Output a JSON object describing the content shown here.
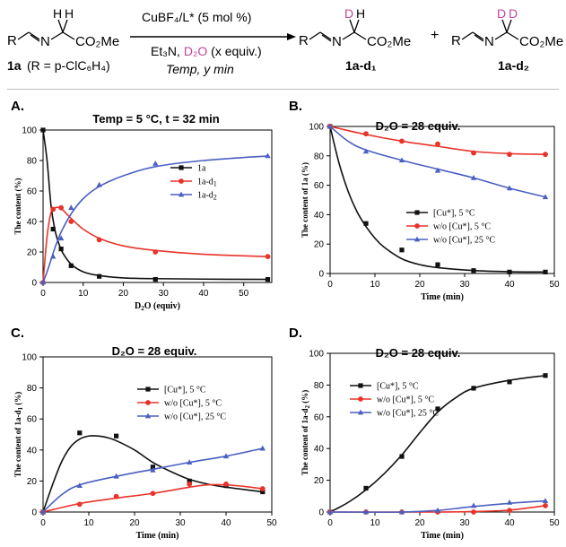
{
  "scheme": {
    "reactant_formula": "R",
    "reactant_N": "N",
    "reactant_H1": "H",
    "reactant_H2": "H",
    "reactant_ester": "CO₂Me",
    "reactant_label": "1a",
    "reactant_R_def": "(R = p-ClC₆H₄)",
    "reagent_top": "CuBF₄/L* (5 mol %)",
    "reagent_mid_a": "Et₃N, ",
    "reagent_mid_d2o": "D₂O",
    "reagent_mid_b": " (x equiv.)",
    "reagent_bottom": "Temp,  y min",
    "product1_label": "1a-d₁",
    "product2_label": "1a-d₂",
    "plus": "+",
    "D": "D"
  },
  "panels": {
    "A": {
      "letter": "A.",
      "title": "Temp = 5 °C, t = 32 min"
    },
    "B": {
      "letter": "B.",
      "title": "D₂O = 28 equiv."
    },
    "C": {
      "letter": "C.",
      "title": "D₂O = 28 equiv."
    },
    "D": {
      "letter": "D.",
      "title": "D₂O = 28 equiv."
    }
  },
  "colors": {
    "black": "#111111",
    "red": "#e8332a",
    "blue": "#4a5fc1",
    "magenta": "#c0459b"
  },
  "chart_data": [
    {
      "id": "A",
      "type": "line",
      "xlabel": "D₂O (equiv)",
      "ylabel": "The content (%)",
      "xlim": [
        0,
        57
      ],
      "ylim": [
        0,
        100
      ],
      "xticks": [
        0,
        10,
        20,
        30,
        40,
        50
      ],
      "yticks": [
        0,
        20,
        40,
        60,
        80,
        100
      ],
      "legend": "center-right",
      "series": [
        {
          "name": "1a",
          "color": "#111111",
          "marker": "square",
          "x": [
            0,
            2.5,
            4.5,
            7,
            14,
            28,
            56
          ],
          "y": [
            100,
            35,
            22,
            11,
            4,
            2,
            2
          ],
          "curve": [
            [
              0,
              100
            ],
            [
              1,
              80
            ],
            [
              2,
              50
            ],
            [
              3,
              34
            ],
            [
              4,
              25
            ],
            [
              5,
              19
            ],
            [
              7,
              12
            ],
            [
              10,
              7
            ],
            [
              14,
              4.5
            ],
            [
              20,
              3
            ],
            [
              28,
              2.5
            ],
            [
              40,
              2.2
            ],
            [
              56,
              2
            ]
          ]
        },
        {
          "name": "1a-d1",
          "color": "#e8332a",
          "marker": "circle",
          "x": [
            0,
            2.5,
            4.5,
            7,
            14,
            28,
            56
          ],
          "y": [
            0,
            48,
            49,
            40,
            28,
            20,
            17
          ],
          "curve": [
            [
              0,
              0
            ],
            [
              1,
              30
            ],
            [
              2,
              46
            ],
            [
              3,
              49
            ],
            [
              4.5,
              48.5
            ],
            [
              7,
              42
            ],
            [
              10,
              35
            ],
            [
              14,
              29
            ],
            [
              20,
              24
            ],
            [
              28,
              21
            ],
            [
              40,
              18.5
            ],
            [
              56,
              17
            ]
          ]
        },
        {
          "name": "1a-d2",
          "color": "#4a5fc1",
          "marker": "triangle",
          "x": [
            0,
            2.5,
            4.5,
            7,
            14,
            28,
            56
          ],
          "y": [
            0,
            17,
            29,
            49,
            64,
            78,
            83
          ],
          "curve": [
            [
              0,
              0
            ],
            [
              1,
              7
            ],
            [
              2,
              15
            ],
            [
              3,
              23
            ],
            [
              4.5,
              33
            ],
            [
              7,
              45
            ],
            [
              10,
              55
            ],
            [
              14,
              63
            ],
            [
              20,
              70
            ],
            [
              28,
              76
            ],
            [
              40,
              80
            ],
            [
              56,
              83
            ]
          ]
        }
      ]
    },
    {
      "id": "B",
      "type": "line",
      "xlabel": "Time (min)",
      "ylabel": "The content of 1a (%)",
      "xlim": [
        0,
        50
      ],
      "ylim": [
        0,
        100
      ],
      "xticks": [
        0,
        10,
        20,
        30,
        40,
        50
      ],
      "yticks": [
        0,
        20,
        40,
        60,
        80,
        100
      ],
      "legend": "center-right",
      "series": [
        {
          "name": "[Cu*], 5 °C",
          "color": "#111111",
          "marker": "square",
          "x": [
            0,
            8,
            16,
            24,
            32,
            40,
            48
          ],
          "y": [
            100,
            34,
            16,
            6,
            2,
            1,
            1
          ],
          "curve": [
            [
              0,
              100
            ],
            [
              2,
              75
            ],
            [
              4,
              56
            ],
            [
              6,
              42
            ],
            [
              8,
              32
            ],
            [
              10,
              24
            ],
            [
              12,
              18
            ],
            [
              16,
              10
            ],
            [
              20,
              6
            ],
            [
              24,
              4
            ],
            [
              32,
              2
            ],
            [
              40,
              1.2
            ],
            [
              48,
              1
            ]
          ]
        },
        {
          "name": "w/o [Cu*], 5 °C",
          "color": "#e8332a",
          "marker": "circle",
          "x": [
            0,
            8,
            16,
            24,
            32,
            40,
            48
          ],
          "y": [
            100,
            95,
            90,
            88,
            82,
            81,
            81
          ],
          "curve": [
            [
              0,
              100
            ],
            [
              8,
              94.5
            ],
            [
              16,
              90
            ],
            [
              24,
              86.5
            ],
            [
              32,
              83
            ],
            [
              40,
              81.5
            ],
            [
              48,
              81
            ]
          ]
        },
        {
          "name": "w/o [Cu*], 25 °C",
          "color": "#4a5fc1",
          "marker": "triangle",
          "x": [
            0,
            8,
            16,
            24,
            32,
            40,
            48
          ],
          "y": [
            100,
            83,
            77,
            70,
            65,
            58,
            52
          ],
          "curve": [
            [
              0,
              100
            ],
            [
              4,
              90
            ],
            [
              8,
              84
            ],
            [
              16,
              77
            ],
            [
              24,
              71
            ],
            [
              32,
              65
            ],
            [
              40,
              58
            ],
            [
              48,
              52
            ]
          ]
        }
      ]
    },
    {
      "id": "C",
      "type": "line",
      "xlabel": "Time (min)",
      "ylabel": "The content of 1a-d1 (%)",
      "xlim": [
        0,
        50
      ],
      "ylim": [
        0,
        100
      ],
      "xticks": [
        0,
        10,
        20,
        30,
        40,
        50
      ],
      "yticks": [
        0,
        20,
        40,
        60,
        80,
        100
      ],
      "legend": "center-right",
      "series": [
        {
          "name": "[Cu*], 5 °C",
          "color": "#111111",
          "marker": "square",
          "x": [
            0,
            8,
            16,
            24,
            32,
            40,
            48
          ],
          "y": [
            0,
            51,
            49,
            29,
            20,
            17,
            13
          ],
          "curve": [
            [
              0,
              0
            ],
            [
              2,
              17
            ],
            [
              4,
              32
            ],
            [
              6,
              42
            ],
            [
              8,
              47
            ],
            [
              10,
              49
            ],
            [
              12,
              49
            ],
            [
              14,
              48
            ],
            [
              16,
              46
            ],
            [
              20,
              40
            ],
            [
              24,
              32
            ],
            [
              28,
              26
            ],
            [
              32,
              21
            ],
            [
              36,
              18
            ],
            [
              40,
              16
            ],
            [
              48,
              13
            ]
          ]
        },
        {
          "name": "w/o [Cu*], 5 °C",
          "color": "#e8332a",
          "marker": "circle",
          "x": [
            0,
            8,
            16,
            24,
            32,
            40,
            48
          ],
          "y": [
            0,
            5,
            10,
            12,
            18,
            18,
            15
          ],
          "curve": [
            [
              0,
              0
            ],
            [
              8,
              5.5
            ],
            [
              16,
              9
            ],
            [
              24,
              12
            ],
            [
              32,
              16
            ],
            [
              36,
              17.5
            ],
            [
              40,
              17.5
            ],
            [
              44,
              16.5
            ],
            [
              48,
              15
            ]
          ]
        },
        {
          "name": "w/o [Cu*], 25 °C",
          "color": "#4a5fc1",
          "marker": "triangle",
          "x": [
            0,
            8,
            16,
            24,
            32,
            40,
            48
          ],
          "y": [
            0,
            17,
            23,
            27,
            32,
            36,
            41
          ],
          "curve": [
            [
              0,
              0
            ],
            [
              4,
              11
            ],
            [
              8,
              17.5
            ],
            [
              16,
              23
            ],
            [
              24,
              27.5
            ],
            [
              32,
              32
            ],
            [
              40,
              36
            ],
            [
              48,
              41
            ]
          ]
        }
      ]
    },
    {
      "id": "D",
      "type": "line",
      "xlabel": "Time (min)",
      "ylabel": "The content of 1a-d2 (%)",
      "xlim": [
        0,
        50
      ],
      "ylim": [
        0,
        100
      ],
      "xticks": [
        0,
        10,
        20,
        30,
        40,
        50
      ],
      "yticks": [
        0,
        20,
        40,
        60,
        80,
        100
      ],
      "legend": "top-left",
      "series": [
        {
          "name": "[Cu*], 5 °C",
          "color": "#111111",
          "marker": "square",
          "x": [
            0,
            8,
            16,
            24,
            32,
            40,
            48
          ],
          "y": [
            0,
            15,
            35,
            65,
            78,
            82,
            86
          ],
          "curve": [
            [
              0,
              0
            ],
            [
              4,
              6
            ],
            [
              8,
              14
            ],
            [
              12,
              24
            ],
            [
              16,
              36
            ],
            [
              20,
              50
            ],
            [
              24,
              63
            ],
            [
              28,
              72
            ],
            [
              32,
              78
            ],
            [
              40,
              83
            ],
            [
              48,
              86
            ]
          ]
        },
        {
          "name": "w/o [Cu*], 5 °C",
          "color": "#e8332a",
          "marker": "circle",
          "x": [
            0,
            8,
            16,
            24,
            32,
            40,
            48
          ],
          "y": [
            0,
            0,
            0,
            0,
            0,
            1,
            4
          ],
          "curve": [
            [
              0,
              0
            ],
            [
              24,
              0
            ],
            [
              32,
              0.3
            ],
            [
              40,
              1.2
            ],
            [
              48,
              4
            ]
          ]
        },
        {
          "name": "w/o [Cu*], 25 °C",
          "color": "#4a5fc1",
          "marker": "triangle",
          "x": [
            0,
            8,
            16,
            24,
            32,
            40,
            48
          ],
          "y": [
            0,
            0,
            0,
            1,
            4,
            6,
            7
          ],
          "curve": [
            [
              0,
              0
            ],
            [
              16,
              0
            ],
            [
              24,
              1
            ],
            [
              32,
              3.5
            ],
            [
              40,
              5.5
            ],
            [
              48,
              7
            ]
          ]
        }
      ]
    }
  ]
}
